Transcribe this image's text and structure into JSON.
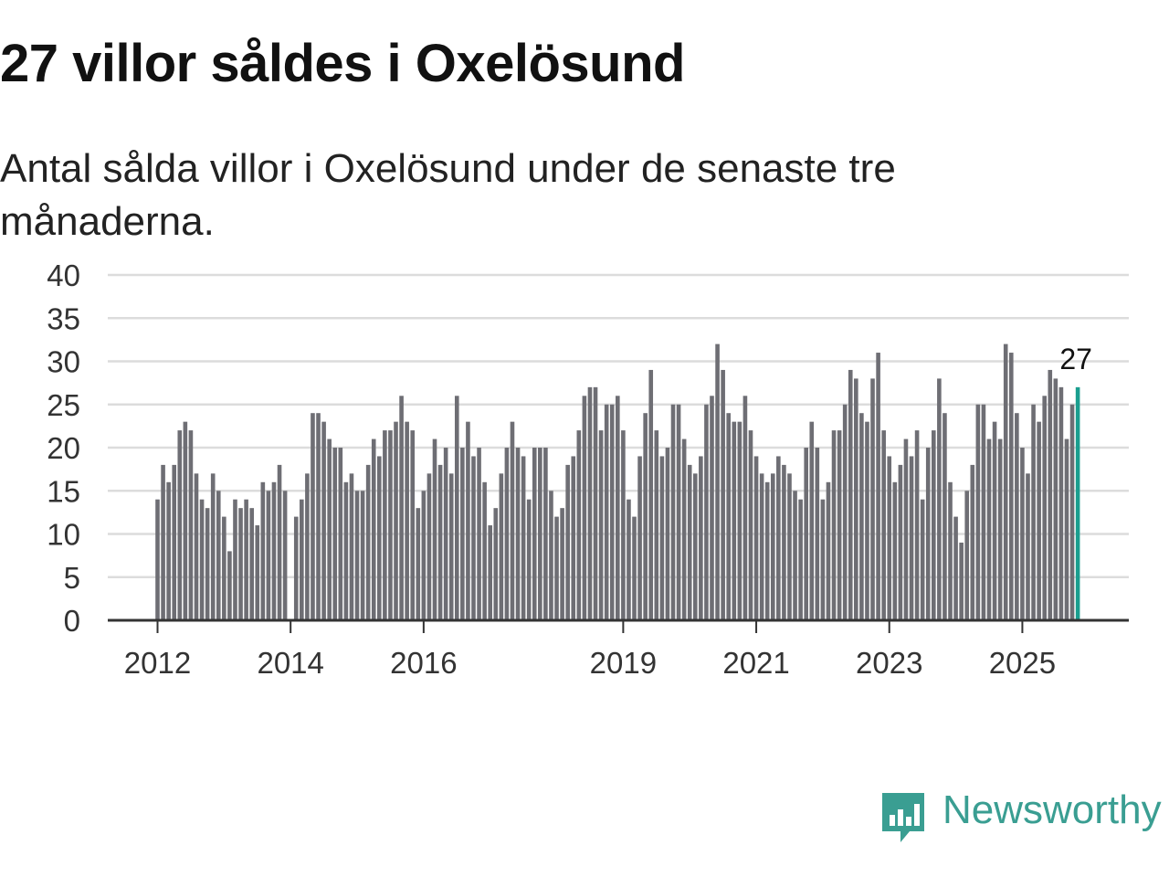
{
  "header": {
    "title": "27 villor såldes i Oxelösund",
    "subtitle": "Antal sålda villor i Oxelösund under de senaste tre månaderna."
  },
  "brand": {
    "name": "Newsworthy",
    "color": "#3a9e92"
  },
  "colors": {
    "bar": "#6e6e74",
    "highlight": "#1a9e8f",
    "grid": "#dcdcdc",
    "axis": "#333333"
  },
  "chart_data": {
    "type": "bar",
    "title": "27 villor såldes i Oxelösund",
    "xlabel": "",
    "ylabel": "",
    "ylim": [
      0,
      40
    ],
    "yticks": [
      0,
      5,
      10,
      15,
      20,
      25,
      30,
      35,
      40
    ],
    "xtick_labels": [
      "2012",
      "2014",
      "2016",
      "2019",
      "2021",
      "2023",
      "2025"
    ],
    "start": "2012-01",
    "values": [
      14,
      18,
      16,
      18,
      22,
      23,
      22,
      17,
      14,
      13,
      17,
      15,
      12,
      8,
      14,
      13,
      14,
      13,
      11,
      16,
      15,
      16,
      18,
      15,
      0,
      12,
      14,
      17,
      24,
      24,
      23,
      21,
      20,
      20,
      16,
      17,
      15,
      15,
      18,
      21,
      19,
      22,
      22,
      23,
      26,
      23,
      22,
      13,
      15,
      17,
      21,
      18,
      20,
      17,
      26,
      20,
      23,
      19,
      20,
      16,
      11,
      13,
      17,
      20,
      23,
      20,
      19,
      14,
      20,
      20,
      20,
      15,
      12,
      13,
      18,
      19,
      22,
      26,
      27,
      27,
      22,
      25,
      25,
      26,
      22,
      14,
      12,
      19,
      24,
      29,
      22,
      19,
      20,
      25,
      25,
      21,
      18,
      17,
      19,
      25,
      26,
      32,
      29,
      24,
      23,
      23,
      26,
      22,
      19,
      17,
      16,
      17,
      19,
      18,
      17,
      15,
      14,
      20,
      23,
      20,
      14,
      16,
      22,
      22,
      25,
      29,
      28,
      24,
      23,
      28,
      31,
      22,
      19,
      16,
      18,
      21,
      19,
      22,
      14,
      20,
      22,
      28,
      24,
      16,
      12,
      9,
      15,
      18,
      25,
      25,
      21,
      23,
      21,
      32,
      31,
      24,
      20,
      17,
      25,
      23,
      26,
      29,
      28,
      27,
      21,
      25,
      27
    ],
    "highlight_last": true,
    "last_label": "27"
  }
}
